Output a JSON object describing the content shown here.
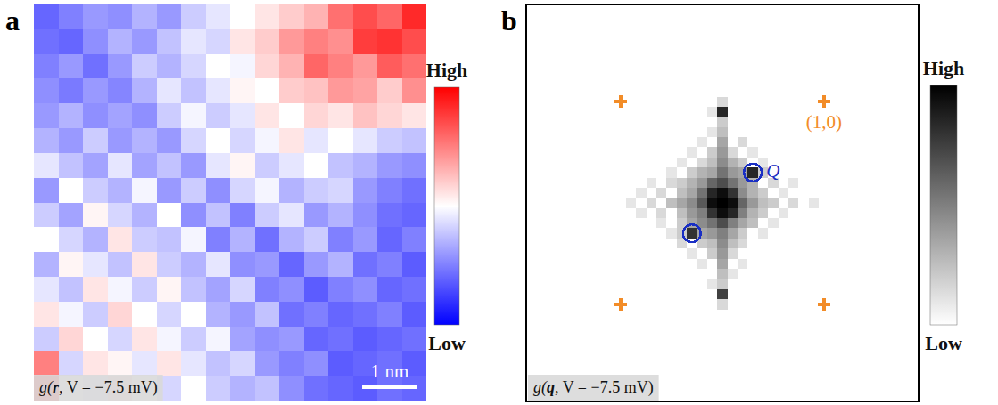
{
  "chart_data": [
    {
      "type": "heatmap",
      "label": "a",
      "caption": "g(r, V = −7.5 mV)",
      "tick_labels": false,
      "xlim": [
        0,
        7.1
      ],
      "ylim": [
        0,
        7.2
      ],
      "z": [
        [
          20,
          25,
          30,
          28,
          35,
          30,
          40,
          45,
          50,
          55,
          60,
          65,
          78,
          85,
          80,
          92
        ],
        [
          22,
          20,
          28,
          35,
          30,
          38,
          45,
          42,
          55,
          60,
          70,
          75,
          72,
          88,
          90,
          85
        ],
        [
          25,
          30,
          22,
          30,
          40,
          35,
          42,
          50,
          48,
          58,
          65,
          80,
          75,
          70,
          82,
          78
        ],
        [
          28,
          24,
          30,
          26,
          35,
          45,
          38,
          45,
          52,
          50,
          60,
          62,
          70,
          68,
          60,
          72
        ],
        [
          30,
          35,
          28,
          32,
          28,
          40,
          48,
          40,
          45,
          55,
          50,
          58,
          55,
          62,
          58,
          55
        ],
        [
          35,
          30,
          40,
          30,
          35,
          30,
          42,
          50,
          42,
          48,
          55,
          45,
          50,
          45,
          40,
          38
        ],
        [
          45,
          38,
          32,
          45,
          32,
          38,
          30,
          45,
          52,
          40,
          45,
          50,
          38,
          35,
          30,
          28
        ],
        [
          30,
          50,
          40,
          35,
          48,
          30,
          40,
          28,
          42,
          48,
          35,
          40,
          42,
          30,
          25,
          22
        ],
        [
          40,
          32,
          52,
          42,
          35,
          50,
          28,
          38,
          25,
          40,
          45,
          30,
          35,
          28,
          22,
          20
        ],
        [
          50,
          42,
          35,
          55,
          40,
          38,
          48,
          25,
          35,
          22,
          35,
          40,
          25,
          30,
          20,
          25
        ],
        [
          35,
          52,
          45,
          38,
          55,
          40,
          35,
          45,
          28,
          30,
          20,
          30,
          35,
          22,
          25,
          18
        ],
        [
          45,
          38,
          55,
          48,
          40,
          52,
          38,
          32,
          42,
          25,
          28,
          18,
          25,
          28,
          20,
          22
        ],
        [
          55,
          48,
          40,
          58,
          50,
          42,
          50,
          35,
          30,
          38,
          22,
          25,
          20,
          22,
          25,
          18
        ],
        [
          40,
          58,
          50,
          42,
          55,
          48,
          40,
          48,
          32,
          28,
          30,
          20,
          22,
          18,
          20,
          22
        ],
        [
          75,
          42,
          55,
          52,
          45,
          55,
          45,
          38,
          42,
          30,
          25,
          28,
          18,
          20,
          22,
          18
        ],
        [
          85,
          50,
          45,
          58,
          50,
          42,
          50,
          40,
          35,
          38,
          28,
          22,
          20,
          18,
          22,
          20
        ]
      ],
      "colorbar": {
        "range": [
          0,
          100
        ],
        "ticks": [
          {
            "value": 100,
            "label": "High"
          },
          {
            "value": 0,
            "label": "Low"
          }
        ],
        "colors": [
          "#0000ff",
          "#ffffff",
          "#ff0000"
        ]
      },
      "scale_bar": {
        "value": 1,
        "label": "1 nm"
      }
    },
    {
      "type": "heatmap",
      "label": "b",
      "caption": "g(q, V = −7.5 mV)",
      "tick_labels": false,
      "xlim": [
        -1.93,
        1.93
      ],
      "ylim": [
        -1.96,
        1.96
      ],
      "x": [
        -1.0,
        -0.9,
        -0.8,
        -0.7,
        -0.6,
        -0.5,
        -0.4,
        -0.3,
        -0.2,
        -0.1,
        0.0,
        0.1,
        0.2,
        0.3,
        0.4,
        0.5,
        0.6,
        0.7,
        0.8,
        0.9,
        1.0
      ],
      "y": [
        1.0,
        0.9,
        0.8,
        0.7,
        0.6,
        0.5,
        0.4,
        0.3,
        0.2,
        0.1,
        0.0,
        -0.1,
        -0.2,
        -0.3,
        -0.4,
        -0.5,
        -0.6,
        -0.7,
        -0.8,
        -0.9,
        -1.0
      ],
      "z": [
        [
          0,
          0,
          0,
          0,
          0,
          0,
          0,
          0,
          0,
          0,
          15,
          0,
          0,
          0,
          0,
          0,
          0,
          0,
          0,
          0,
          0
        ],
        [
          0,
          0,
          0,
          0,
          0,
          0,
          0,
          0,
          0,
          10,
          85,
          0,
          0,
          0,
          0,
          0,
          0,
          0,
          0,
          0,
          0
        ],
        [
          0,
          0,
          0,
          0,
          0,
          0,
          0,
          0,
          0,
          0,
          20,
          0,
          0,
          0,
          0,
          0,
          0,
          0,
          0,
          0,
          0
        ],
        [
          0,
          0,
          0,
          0,
          0,
          0,
          0,
          0,
          0,
          10,
          25,
          0,
          0,
          0,
          0,
          0,
          0,
          0,
          0,
          0,
          0
        ],
        [
          0,
          0,
          0,
          0,
          0,
          0,
          0,
          0,
          10,
          0,
          35,
          0,
          15,
          0,
          0,
          0,
          0,
          0,
          0,
          0,
          0
        ],
        [
          0,
          0,
          0,
          0,
          0,
          0,
          0,
          10,
          0,
          20,
          40,
          15,
          0,
          10,
          0,
          0,
          0,
          0,
          0,
          0,
          0
        ],
        [
          0,
          0,
          0,
          0,
          0,
          0,
          10,
          0,
          15,
          25,
          45,
          30,
          20,
          0,
          10,
          0,
          0,
          0,
          0,
          0,
          0
        ],
        [
          0,
          0,
          0,
          0,
          0,
          10,
          0,
          20,
          30,
          35,
          55,
          40,
          35,
          85,
          20,
          0,
          0,
          0,
          0,
          0,
          0
        ],
        [
          0,
          0,
          0,
          10,
          0,
          15,
          20,
          30,
          40,
          60,
          70,
          55,
          40,
          30,
          0,
          15,
          0,
          10,
          0,
          0,
          0
        ],
        [
          0,
          0,
          10,
          0,
          15,
          0,
          25,
          35,
          55,
          85,
          95,
          80,
          45,
          30,
          20,
          0,
          10,
          0,
          0,
          0,
          0
        ],
        [
          0,
          10,
          0,
          15,
          0,
          25,
          35,
          45,
          65,
          95,
          100,
          95,
          60,
          40,
          25,
          20,
          0,
          15,
          0,
          10,
          0
        ],
        [
          0,
          0,
          10,
          0,
          15,
          0,
          25,
          40,
          50,
          80,
          95,
          85,
          50,
          30,
          20,
          0,
          10,
          0,
          0,
          0,
          0
        ],
        [
          0,
          0,
          0,
          0,
          10,
          0,
          20,
          35,
          45,
          55,
          70,
          50,
          35,
          25,
          0,
          10,
          0,
          0,
          0,
          0,
          0
        ],
        [
          0,
          0,
          0,
          0,
          0,
          10,
          20,
          80,
          35,
          40,
          50,
          35,
          20,
          0,
          10,
          0,
          0,
          0,
          0,
          0,
          0
        ],
        [
          0,
          0,
          0,
          0,
          0,
          0,
          15,
          0,
          20,
          25,
          45,
          25,
          15,
          0,
          0,
          0,
          0,
          0,
          0,
          0,
          0
        ],
        [
          0,
          0,
          0,
          0,
          0,
          0,
          0,
          10,
          0,
          20,
          40,
          15,
          0,
          0,
          0,
          0,
          0,
          0,
          0,
          0,
          0
        ],
        [
          0,
          0,
          0,
          0,
          0,
          0,
          0,
          0,
          10,
          0,
          35,
          0,
          10,
          0,
          0,
          0,
          0,
          0,
          0,
          0,
          0
        ],
        [
          0,
          0,
          0,
          0,
          0,
          0,
          0,
          0,
          0,
          0,
          25,
          10,
          0,
          0,
          0,
          0,
          0,
          0,
          0,
          0,
          0
        ],
        [
          0,
          0,
          0,
          0,
          0,
          0,
          0,
          0,
          0,
          10,
          20,
          0,
          0,
          0,
          0,
          0,
          0,
          0,
          0,
          0,
          0
        ],
        [
          0,
          0,
          0,
          0,
          0,
          0,
          0,
          0,
          0,
          0,
          75,
          0,
          0,
          0,
          0,
          0,
          0,
          0,
          0,
          0,
          0
        ],
        [
          0,
          0,
          0,
          0,
          0,
          0,
          0,
          0,
          0,
          0,
          15,
          0,
          0,
          0,
          0,
          0,
          0,
          0,
          0,
          0,
          0
        ]
      ],
      "colorbar": {
        "range": [
          0,
          100
        ],
        "ticks": [
          {
            "value": 100,
            "label": "High"
          },
          {
            "value": 0,
            "label": "Low"
          }
        ],
        "colors": [
          "#ffffff",
          "#000000"
        ]
      },
      "bragg_peaks": {
        "x": [
          -1,
          1,
          -1,
          1
        ],
        "y": [
          1,
          1,
          -1,
          -1
        ],
        "labels": [
          null,
          "(1,0)",
          null,
          null
        ],
        "color": "#f28c28",
        "marker": "plus"
      },
      "wave_vectors": {
        "x": [
          0.3,
          -0.3
        ],
        "y": [
          0.3,
          -0.3
        ],
        "labels": [
          "Q",
          null
        ],
        "color": "#1a2fc4",
        "marker": "circle"
      }
    }
  ]
}
